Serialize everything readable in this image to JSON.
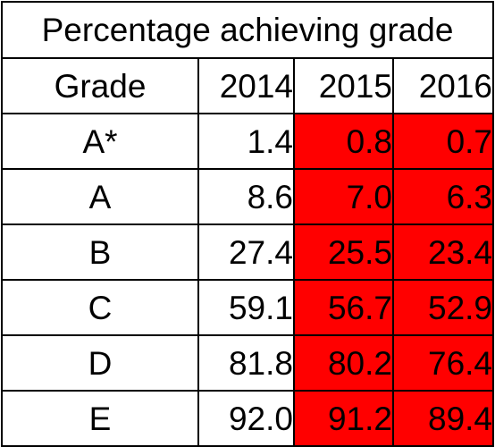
{
  "chart_data": {
    "type": "table",
    "title": "Percentage achieving grade",
    "columns": [
      "Grade",
      "2014",
      "2015",
      "2016"
    ],
    "highlight_color": "#ff0000",
    "highlighted_columns": [
      "2015",
      "2016"
    ],
    "rows": [
      {
        "grade": "A*",
        "values": [
          "1.4",
          "0.8",
          "0.7"
        ]
      },
      {
        "grade": "A",
        "values": [
          "8.6",
          "7.0",
          "6.3"
        ]
      },
      {
        "grade": "B",
        "values": [
          "27.4",
          "25.5",
          "23.4"
        ]
      },
      {
        "grade": "C",
        "values": [
          "59.1",
          "56.7",
          "52.9"
        ]
      },
      {
        "grade": "D",
        "values": [
          "81.8",
          "80.2",
          "76.4"
        ]
      },
      {
        "grade": "E",
        "values": [
          "92.0",
          "91.2",
          "89.4"
        ]
      }
    ]
  }
}
